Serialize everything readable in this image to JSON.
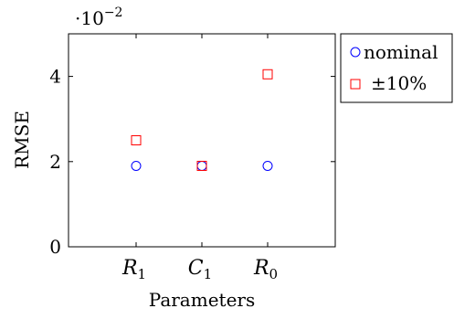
{
  "chart_data": {
    "type": "scatter",
    "title": "",
    "xlabel": "Parameters",
    "ylabel": "RMSE",
    "y_multiplier_label": {
      "base": "·10",
      "exponent": "−2"
    },
    "categories": [
      {
        "symbol": "R",
        "subscript": "1"
      },
      {
        "symbol": "C",
        "subscript": "1"
      },
      {
        "symbol": "R",
        "subscript": "0"
      }
    ],
    "yticks": [
      "0",
      "2",
      "4"
    ],
    "ylim": [
      0,
      0.05
    ],
    "grid": false,
    "legend_position": "outside-top-right",
    "series": [
      {
        "name": "nominal",
        "marker": "circle",
        "color": "#0000ff",
        "values": [
          0.019,
          0.019,
          0.019
        ]
      },
      {
        "name": "±10%",
        "marker": "square",
        "color": "#ff0000",
        "values": [
          0.025,
          0.019,
          0.0405
        ]
      }
    ]
  }
}
